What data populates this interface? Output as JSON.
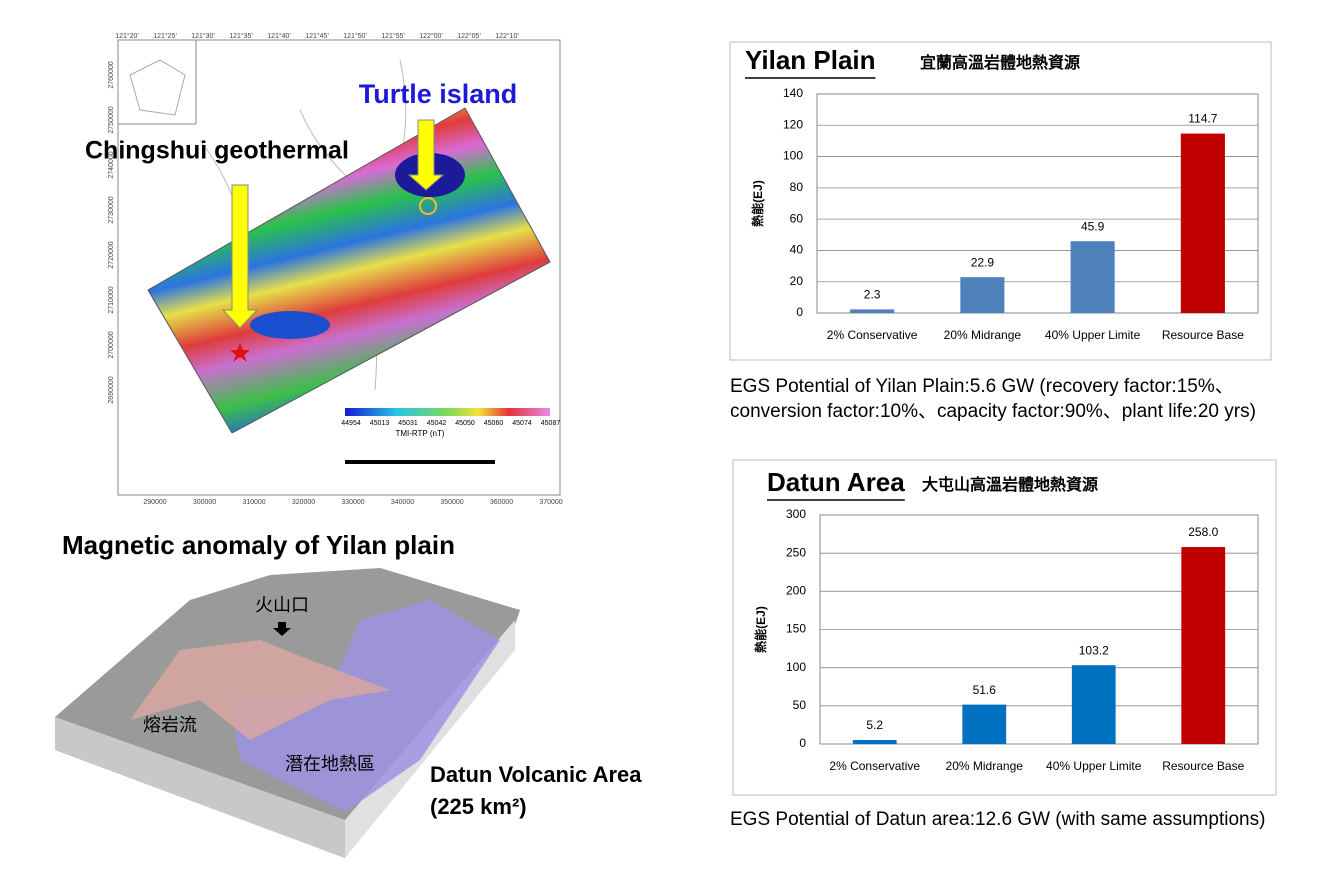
{
  "chart_data": [
    {
      "type": "bar",
      "title": "Yilan Plain",
      "subtitle": "宜蘭高溫岩體地熱資源",
      "y_label": "熱能(EJ)",
      "categories": [
        "2% Conservative",
        "20% Midrange",
        "40% Upper Limite",
        "Resource Base"
      ],
      "values": [
        2.3,
        22.9,
        45.9,
        114.7
      ],
      "colors": [
        "#4f81bd",
        "#4f81bd",
        "#4f81bd",
        "#c00000"
      ],
      "ylim": [
        0,
        140
      ],
      "yticks": [
        0,
        20,
        40,
        60,
        80,
        100,
        120,
        140
      ],
      "grid": true
    },
    {
      "type": "bar",
      "title": "Datun Area",
      "subtitle": "大屯山高溫岩體地熱資源",
      "y_label": "熱能(EJ)",
      "categories": [
        "2% Conservative",
        "20% Midrange",
        "40% Upper Limite",
        "Resource Base"
      ],
      "values": [
        5.2,
        51.6,
        103.2,
        258
      ],
      "value_labels": [
        "5.2",
        "51.6",
        "103.2",
        "258.0"
      ],
      "colors": [
        "#0070c0",
        "#0070c0",
        "#0070c0",
        "#c00000"
      ],
      "ylim": [
        0,
        300
      ],
      "yticks": [
        0,
        50,
        100,
        150,
        200,
        250,
        300
      ],
      "grid": true
    }
  ],
  "map": {
    "label_turtle": "Turtle island",
    "label_chingshui": "Chingshui geothermal",
    "caption": "Magnetic anomaly of Yilan plain",
    "x_labels": [
      "290000",
      "300000",
      "310000",
      "320000",
      "330000",
      "340000",
      "350000",
      "360000",
      "370000"
    ],
    "top_labels": [
      "121°20'",
      "121°25'",
      "121°30'",
      "121°35'",
      "121°40'",
      "121°45'",
      "121°50'",
      "121°55'",
      "122°00'",
      "122°05'",
      "122°10'"
    ],
    "y_labels": [
      "2760000",
      "2750000",
      "2740000",
      "2730000",
      "2720000",
      "2710000",
      "2700000",
      "2690000"
    ],
    "colorbar_labels": [
      "44954",
      "45013",
      "45031",
      "45042",
      "45050",
      "45060",
      "45074",
      "45087"
    ],
    "colorbar_title": "TMI-RTP (nT)"
  },
  "volcano": {
    "crater": "火山口",
    "lava": "熔岩流",
    "zone": "潛在地熱區",
    "caption": "Datun Volcanic Area",
    "area": "(225 km²)"
  },
  "notes": {
    "yilan": "EGS Potential of Yilan Plain:5.6 GW (recovery factor:15%、conversion factor:10%、capacity factor:90%、plant life:20 yrs)",
    "datun": "EGS Potential of Datun area:12.6 GW (with same assumptions)"
  }
}
